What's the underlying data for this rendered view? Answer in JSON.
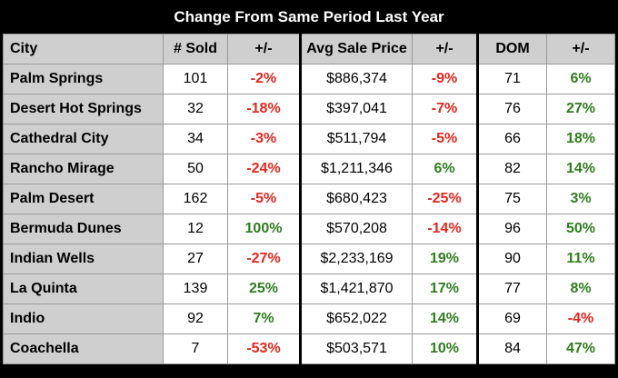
{
  "title": "Change From Same Period Last Year",
  "headers": {
    "city": "City",
    "sold": "# Sold",
    "sold_change": "+/-",
    "price": "Avg Sale Price",
    "price_change": "+/-",
    "dom": "DOM",
    "dom_change": "+/-"
  },
  "rows": [
    {
      "city": "Palm Springs",
      "sold": "101",
      "sold_change": "-2%",
      "price": "$886,374",
      "price_change": "-9%",
      "dom": "71",
      "dom_change": "6%"
    },
    {
      "city": "Desert Hot Springs",
      "sold": "32",
      "sold_change": "-18%",
      "price": "$397,041",
      "price_change": "-7%",
      "dom": "76",
      "dom_change": "27%"
    },
    {
      "city": "Cathedral City",
      "sold": "34",
      "sold_change": "-3%",
      "price": "$511,794",
      "price_change": "-5%",
      "dom": "66",
      "dom_change": "18%"
    },
    {
      "city": "Rancho Mirage",
      "sold": "50",
      "sold_change": "-24%",
      "price": "$1,211,346",
      "price_change": "6%",
      "dom": "82",
      "dom_change": "14%"
    },
    {
      "city": "Palm Desert",
      "sold": "162",
      "sold_change": "-5%",
      "price": "$680,423",
      "price_change": "-25%",
      "dom": "75",
      "dom_change": "3%"
    },
    {
      "city": "Bermuda Dunes",
      "sold": "12",
      "sold_change": "100%",
      "price": "$570,208",
      "price_change": "-14%",
      "dom": "96",
      "dom_change": "50%"
    },
    {
      "city": "Indian Wells",
      "sold": "27",
      "sold_change": "-27%",
      "price": "$2,233,169",
      "price_change": "19%",
      "dom": "90",
      "dom_change": "11%"
    },
    {
      "city": "La Quinta",
      "sold": "139",
      "sold_change": "25%",
      "price": "$1,421,870",
      "price_change": "17%",
      "dom": "77",
      "dom_change": "8%"
    },
    {
      "city": "Indio",
      "sold": "92",
      "sold_change": "7%",
      "price": "$652,022",
      "price_change": "14%",
      "dom": "69",
      "dom_change": "-4%"
    },
    {
      "city": "Coachella",
      "sold": "7",
      "sold_change": "-53%",
      "price": "$503,571",
      "price_change": "10%",
      "dom": "84",
      "dom_change": "47%"
    }
  ],
  "colors": {
    "negative": "#e0271f",
    "positive": "#2e7d1d",
    "header_bg": "#cfcfcf",
    "background": "#000000"
  }
}
